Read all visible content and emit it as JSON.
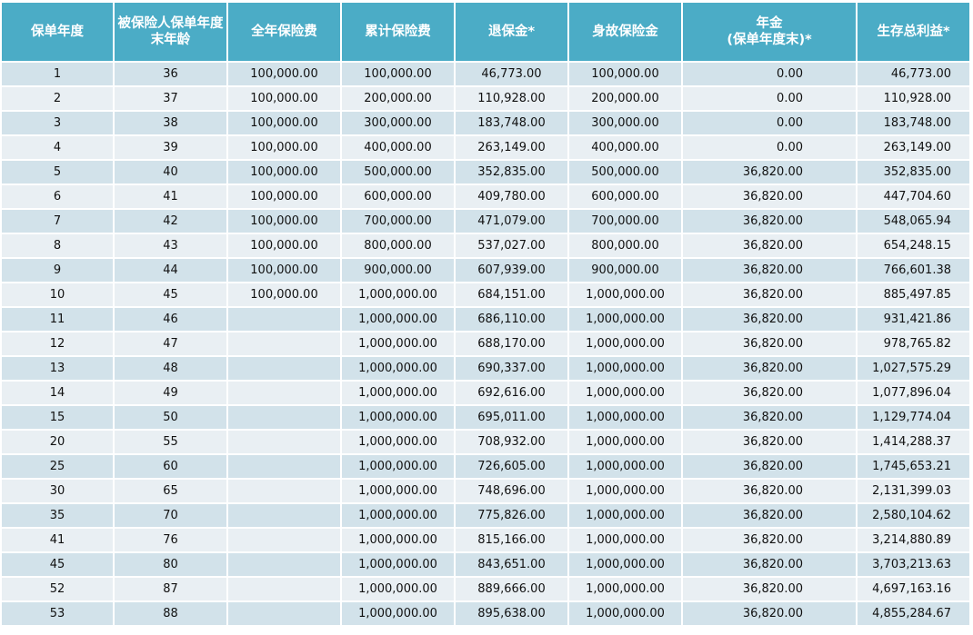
{
  "table": {
    "headers": [
      "保单年度",
      "被保险人保单年度末年龄",
      "全年保险费",
      "累计保险费",
      "退保金*",
      "身故保险金",
      "年金\n(保单年度末)*",
      "生存总利益*"
    ],
    "rows": [
      [
        "1",
        "36",
        "100,000.00",
        "100,000.00",
        "46,773.00",
        "100,000.00",
        "0.00",
        "46,773.00"
      ],
      [
        "2",
        "37",
        "100,000.00",
        "200,000.00",
        "110,928.00",
        "200,000.00",
        "0.00",
        "110,928.00"
      ],
      [
        "3",
        "38",
        "100,000.00",
        "300,000.00",
        "183,748.00",
        "300,000.00",
        "0.00",
        "183,748.00"
      ],
      [
        "4",
        "39",
        "100,000.00",
        "400,000.00",
        "263,149.00",
        "400,000.00",
        "0.00",
        "263,149.00"
      ],
      [
        "5",
        "40",
        "100,000.00",
        "500,000.00",
        "352,835.00",
        "500,000.00",
        "36,820.00",
        "352,835.00"
      ],
      [
        "6",
        "41",
        "100,000.00",
        "600,000.00",
        "409,780.00",
        "600,000.00",
        "36,820.00",
        "447,704.60"
      ],
      [
        "7",
        "42",
        "100,000.00",
        "700,000.00",
        "471,079.00",
        "700,000.00",
        "36,820.00",
        "548,065.94"
      ],
      [
        "8",
        "43",
        "100,000.00",
        "800,000.00",
        "537,027.00",
        "800,000.00",
        "36,820.00",
        "654,248.15"
      ],
      [
        "9",
        "44",
        "100,000.00",
        "900,000.00",
        "607,939.00",
        "900,000.00",
        "36,820.00",
        "766,601.38"
      ],
      [
        "10",
        "45",
        "100,000.00",
        "1,000,000.00",
        "684,151.00",
        "1,000,000.00",
        "36,820.00",
        "885,497.85"
      ],
      [
        "11",
        "46",
        "",
        "1,000,000.00",
        "686,110.00",
        "1,000,000.00",
        "36,820.00",
        "931,421.86"
      ],
      [
        "12",
        "47",
        "",
        "1,000,000.00",
        "688,170.00",
        "1,000,000.00",
        "36,820.00",
        "978,765.82"
      ],
      [
        "13",
        "48",
        "",
        "1,000,000.00",
        "690,337.00",
        "1,000,000.00",
        "36,820.00",
        "1,027,575.29"
      ],
      [
        "14",
        "49",
        "",
        "1,000,000.00",
        "692,616.00",
        "1,000,000.00",
        "36,820.00",
        "1,077,896.04"
      ],
      [
        "15",
        "50",
        "",
        "1,000,000.00",
        "695,011.00",
        "1,000,000.00",
        "36,820.00",
        "1,129,774.04"
      ],
      [
        "20",
        "55",
        "",
        "1,000,000.00",
        "708,932.00",
        "1,000,000.00",
        "36,820.00",
        "1,414,288.37"
      ],
      [
        "25",
        "60",
        "",
        "1,000,000.00",
        "726,605.00",
        "1,000,000.00",
        "36,820.00",
        "1,745,653.21"
      ],
      [
        "30",
        "65",
        "",
        "1,000,000.00",
        "748,696.00",
        "1,000,000.00",
        "36,820.00",
        "2,131,399.03"
      ],
      [
        "35",
        "70",
        "",
        "1,000,000.00",
        "775,826.00",
        "1,000,000.00",
        "36,820.00",
        "2,580,104.62"
      ],
      [
        "41",
        "76",
        "",
        "1,000,000.00",
        "815,166.00",
        "1,000,000.00",
        "36,820.00",
        "3,214,880.89"
      ],
      [
        "45",
        "80",
        "",
        "1,000,000.00",
        "843,651.00",
        "1,000,000.00",
        "36,820.00",
        "3,703,213.63"
      ],
      [
        "52",
        "87",
        "",
        "1,000,000.00",
        "889,666.00",
        "1,000,000.00",
        "36,820.00",
        "4,697,163.16"
      ],
      [
        "53",
        "88",
        "",
        "1,000,000.00",
        "895,638.00",
        "1,000,000.00",
        "36,820.00",
        "4,855,284.67"
      ]
    ]
  },
  "colors": {
    "header_bg": "#4bacc6",
    "row_odd": "#d2e2ea",
    "row_even": "#e9eff3"
  }
}
